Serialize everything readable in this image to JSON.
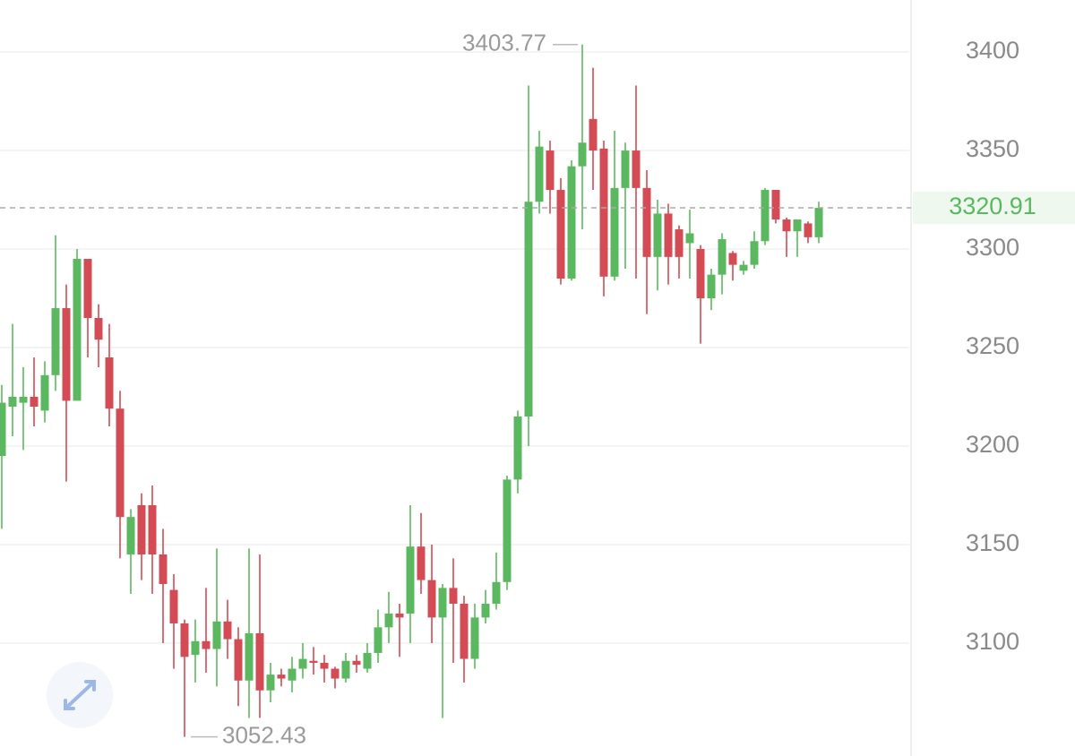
{
  "chart_data": {
    "type": "candlestick",
    "open": [
      3195,
      3220,
      3222,
      3225,
      3218,
      3236,
      3270,
      3223,
      3295,
      3265,
      3245,
      3219,
      3145,
      3170,
      3170,
      3145,
      3127,
      3110,
      3094,
      3101,
      3097,
      3111,
      3102,
      3081,
      3105,
      3076,
      3084,
      3081,
      3087,
      3091,
      3090,
      3087,
      3082,
      3091,
      3087,
      3095,
      3108,
      3115,
      3115,
      3149,
      3132,
      3113,
      3128,
      3120,
      3092,
      3113,
      3120,
      3131,
      3183,
      3215,
      3324,
      3350,
      3330,
      3285,
      3342,
      3366,
      3351,
      3286,
      3331,
      3350,
      3331,
      3296,
      3318,
      3310,
      3303,
      3300,
      3275,
      3287,
      3298,
      3289,
      3292,
      3304,
      3330,
      3315,
      3309,
      3313,
      3306
    ],
    "high": [
      3231,
      3262,
      3240,
      3245,
      3243,
      3307,
      3282,
      3300,
      3295,
      3272,
      3262,
      3228,
      3168,
      3176,
      3180,
      3158,
      3135,
      3112,
      3112,
      3128,
      3148,
      3122,
      3108,
      3148,
      3145,
      3090,
      3087,
      3093,
      3100,
      3098,
      3094,
      3088,
      3095,
      3094,
      3100,
      3117,
      3126,
      3120,
      3170,
      3166,
      3150,
      3130,
      3143,
      3124,
      3120,
      3127,
      3146,
      3185,
      3218,
      3383,
      3360,
      3355,
      3336,
      3345,
      3403.77,
      3392,
      3355,
      3360,
      3354,
      3383,
      3340,
      3325,
      3323,
      3312,
      3320,
      3302,
      3290,
      3308,
      3299,
      3294,
      3309,
      3331,
      3330,
      3316,
      3315,
      3314,
      3324
    ],
    "low": [
      3158,
      3205,
      3198,
      3210,
      3212,
      3228,
      3182,
      3223,
      3245,
      3240,
      3210,
      3143,
      3125,
      3132,
      3125,
      3100,
      3087,
      3052.43,
      3080,
      3085,
      3078,
      3092,
      3068,
      3062,
      3062,
      3070,
      3078,
      3075,
      3082,
      3084,
      3080,
      3077,
      3080,
      3085,
      3085,
      3090,
      3100,
      3093,
      3100,
      3125,
      3100,
      3062,
      3090,
      3080,
      3087,
      3110,
      3117,
      3127,
      3176,
      3200,
      3318,
      3318,
      3282,
      3284,
      3310,
      3330,
      3276,
      3284,
      3290,
      3285,
      3267,
      3279,
      3282,
      3285,
      3285,
      3252,
      3269,
      3277,
      3284,
      3287,
      3290,
      3302,
      3313,
      3296,
      3296,
      3303,
      3303
    ],
    "close": [
      3222,
      3225,
      3225,
      3220,
      3236,
      3270,
      3223,
      3295,
      3265,
      3254,
      3219,
      3164,
      3164,
      3145,
      3145,
      3130,
      3110,
      3093,
      3101,
      3097,
      3111,
      3102,
      3081,
      3105,
      3076,
      3084,
      3082,
      3087,
      3092,
      3090,
      3087,
      3082,
      3091,
      3089,
      3095,
      3108,
      3115,
      3113,
      3149,
      3132,
      3113,
      3128,
      3120,
      3092,
      3113,
      3120,
      3131,
      3183,
      3215,
      3324,
      3352,
      3330,
      3285,
      3342,
      3354,
      3350,
      3286,
      3331,
      3350,
      3331,
      3296,
      3318,
      3296,
      3296,
      3308,
      3275,
      3287,
      3305,
      3292,
      3292,
      3304,
      3330,
      3315,
      3309,
      3315,
      3306,
      3320.91
    ],
    "up_color": "#5cb860",
    "down_color": "#d24b55",
    "ylim": [
      3042.7,
      3426.4
    ],
    "yticks": [
      3100,
      3150,
      3200,
      3250,
      3300,
      3350,
      3400
    ],
    "grid": true
  }
}
